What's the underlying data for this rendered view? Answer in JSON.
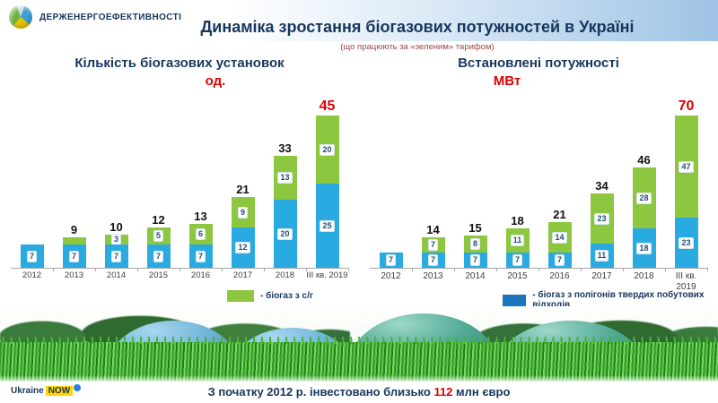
{
  "header": {
    "logo_text": "ДЕРЖЕНЕРГОЕФЕКТИВНОСТІ",
    "title": "Динаміка зростання біогазових потужностей  в Україні",
    "subtitle": "(що працюють за «зеленим» тарифом)"
  },
  "icons": {
    "agency_logo": "saee-circle-logo-icon",
    "ukraine_now_badge": "ukraine-now-dot-icon"
  },
  "colors": {
    "title_navy": "#17365D",
    "accent_red": "#DE0000",
    "bar_green": "#8DC63F",
    "bar_blue": "#29ABE2",
    "legend_blue": "#1B75BC"
  },
  "chart_data": [
    {
      "type": "bar",
      "stacked": true,
      "title": "Кількість біогазових установок",
      "unit": "од.",
      "categories": [
        "2012",
        "2013",
        "2014",
        "2015",
        "2016",
        "2017",
        "2018",
        "III кв. 2019"
      ],
      "series": [
        {
          "name": "біогаз з полігонів твердих побутових відходів",
          "color_key": "bar_blue",
          "values": [
            7,
            7,
            7,
            7,
            7,
            12,
            20,
            25
          ],
          "labels": [
            "7",
            "7",
            "7",
            "7",
            "7",
            "12",
            "20",
            "25"
          ]
        },
        {
          "name": "біогаз з с/г",
          "color_key": "bar_green",
          "values": [
            0,
            2,
            3,
            5,
            6,
            9,
            13,
            20
          ],
          "labels": [
            "",
            "",
            "3",
            "5",
            "6",
            "9",
            "13",
            "20"
          ]
        }
      ],
      "totals": [
        7,
        9,
        10,
        12,
        13,
        21,
        33,
        45
      ],
      "total_labels": [
        "",
        "9",
        "10",
        "12",
        "13",
        "21",
        "33",
        "45"
      ],
      "highlight_last_total": true,
      "ylim": [
        0,
        45
      ],
      "grid": false,
      "legend_position": "bottom"
    },
    {
      "type": "bar",
      "stacked": true,
      "title": "Встановлені потужності",
      "unit": "МВт",
      "categories": [
        "2012",
        "2013",
        "2014",
        "2015",
        "2016",
        "2017",
        "2018",
        "III кв. 2019"
      ],
      "series": [
        {
          "name": "біогаз з полігонів твердих побутових відходів",
          "color_key": "bar_blue",
          "values": [
            7,
            7,
            7,
            7,
            7,
            11,
            18,
            23
          ],
          "labels": [
            "7",
            "7",
            "7",
            "7",
            "7",
            "11",
            "18",
            "23"
          ]
        },
        {
          "name": "біогаз з с/г",
          "color_key": "bar_green",
          "values": [
            0,
            7,
            8,
            11,
            14,
            23,
            28,
            47
          ],
          "labels": [
            "",
            "7",
            "8",
            "11",
            "14",
            "23",
            "28",
            "47"
          ]
        }
      ],
      "totals": [
        7,
        14,
        15,
        18,
        21,
        34,
        46,
        70
      ],
      "total_labels": [
        "",
        "14",
        "15",
        "18",
        "21",
        "34",
        "46",
        "70"
      ],
      "highlight_last_total": true,
      "ylim": [
        0,
        70
      ],
      "grid": false,
      "legend_position": "bottom"
    }
  ],
  "legend": {
    "items": [
      {
        "label": "- біогаз з с/г",
        "color_key": "bar_green"
      },
      {
        "label": "- біогаз з полігонів твердих побутових відходів",
        "color_key": "legend_blue"
      }
    ]
  },
  "footer": {
    "brand_prefix": "Ukraine",
    "brand_highlight": "NOW",
    "invest_prefix": "З початку 2012 р. інвестовано близько ",
    "invest_amount": "112",
    "invest_suffix": " млн євро"
  }
}
